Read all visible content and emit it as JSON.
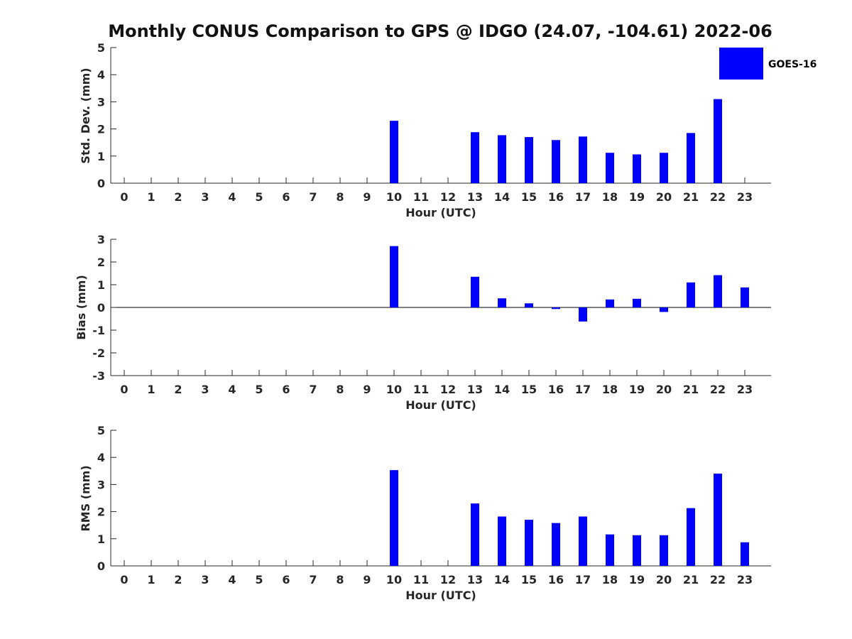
{
  "title": "Monthly CONUS Comparison to GPS @ IDGO (24.07, -104.61) 2022-06",
  "legend": {
    "label": "GOES-16",
    "color": "#0000ff"
  },
  "chart_data": [
    {
      "type": "bar",
      "name": "std",
      "series_name": "GOES-16",
      "xlabel": "Hour (UTC)",
      "ylabel": "Std. Dev. (mm)",
      "ylim": [
        0,
        5
      ],
      "yticks": [
        0,
        1,
        2,
        3,
        4,
        5
      ],
      "categories": [
        "0",
        "1",
        "2",
        "3",
        "4",
        "5",
        "6",
        "7",
        "8",
        "9",
        "10",
        "11",
        "12",
        "13",
        "14",
        "15",
        "16",
        "17",
        "18",
        "19",
        "20",
        "21",
        "22",
        "23"
      ],
      "values": [
        null,
        null,
        null,
        null,
        null,
        null,
        null,
        null,
        null,
        null,
        2.3,
        null,
        null,
        1.88,
        1.77,
        1.7,
        1.59,
        1.72,
        1.12,
        1.06,
        1.12,
        1.85,
        3.1,
        null
      ],
      "color": "#0000ff",
      "grid": false,
      "legend": "top-right"
    },
    {
      "type": "bar",
      "name": "bias",
      "series_name": "GOES-16",
      "xlabel": "Hour (UTC)",
      "ylabel": "Bias (mm)",
      "ylim": [
        -3,
        3
      ],
      "yticks": [
        -3,
        -2,
        -1,
        0,
        1,
        2,
        3
      ],
      "categories": [
        "0",
        "1",
        "2",
        "3",
        "4",
        "5",
        "6",
        "7",
        "8",
        "9",
        "10",
        "11",
        "12",
        "13",
        "14",
        "15",
        "16",
        "17",
        "18",
        "19",
        "20",
        "21",
        "22",
        "23"
      ],
      "values": [
        null,
        null,
        null,
        null,
        null,
        null,
        null,
        null,
        null,
        null,
        2.7,
        null,
        null,
        1.35,
        0.4,
        0.18,
        -0.07,
        -0.62,
        0.35,
        0.38,
        -0.2,
        1.1,
        1.42,
        0.88
      ],
      "color": "#0000ff",
      "grid": false
    },
    {
      "type": "bar",
      "name": "rms",
      "series_name": "GOES-16",
      "xlabel": "Hour (UTC)",
      "ylabel": "RMS (mm)",
      "ylim": [
        0,
        5
      ],
      "yticks": [
        0,
        1,
        2,
        3,
        4,
        5
      ],
      "categories": [
        "0",
        "1",
        "2",
        "3",
        "4",
        "5",
        "6",
        "7",
        "8",
        "9",
        "10",
        "11",
        "12",
        "13",
        "14",
        "15",
        "16",
        "17",
        "18",
        "19",
        "20",
        "21",
        "22",
        "23"
      ],
      "values": [
        null,
        null,
        null,
        null,
        null,
        null,
        null,
        null,
        null,
        null,
        3.53,
        null,
        null,
        2.3,
        1.82,
        1.7,
        1.58,
        1.82,
        1.16,
        1.13,
        1.13,
        2.13,
        3.4,
        0.87
      ],
      "color": "#0000ff",
      "grid": false
    }
  ]
}
